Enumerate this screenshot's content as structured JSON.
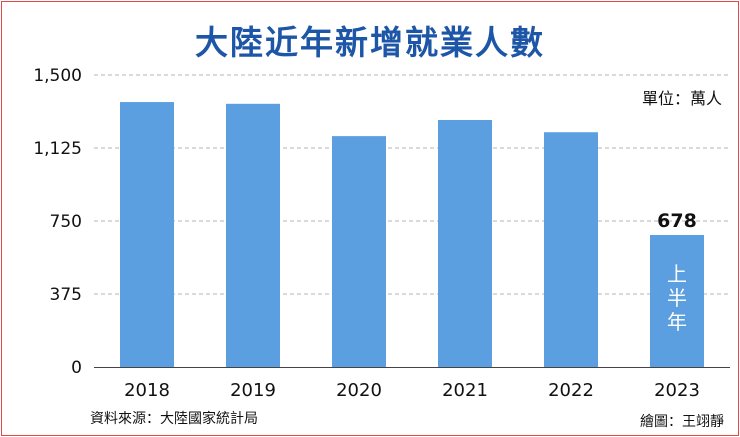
{
  "chart_data": {
    "type": "bar",
    "title": "大陸近年新增就業人數",
    "unit": "單位：萬人",
    "categories": [
      "2018",
      "2019",
      "2020",
      "2021",
      "2022",
      "2023"
    ],
    "values": [
      1361,
      1352,
      1186,
      1269,
      1206,
      678
    ],
    "value_labels": [
      "",
      "",
      "",
      "",
      "",
      "678"
    ],
    "bar_notes": [
      "",
      "",
      "",
      "",
      "",
      "上半年"
    ],
    "yticks": [
      0,
      375,
      750,
      1125,
      1500
    ],
    "ytick_labels": [
      "0",
      "375",
      "750",
      "1,125",
      "1,500"
    ],
    "ylim": [
      0,
      1500
    ],
    "grid": true,
    "source": "資料來源：大陸國家統計局",
    "credit": "繪圖：王翊靜",
    "colors": {
      "bar": "#5b9fe0",
      "title": "#1d56a6",
      "grid": "#b5b5b5",
      "border": "#e24a4a"
    }
  }
}
